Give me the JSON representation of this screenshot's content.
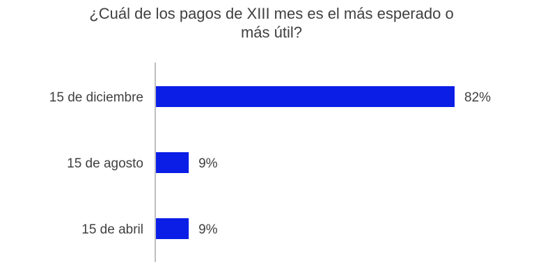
{
  "chart_data": {
    "type": "bar",
    "orientation": "horizontal",
    "title_lines": [
      "¿Cuál de los pagos de XIII mes es el más esperado o",
      "más útil?"
    ],
    "categories": [
      "15 de diciembre",
      "15 de agosto",
      "15 de abril"
    ],
    "values": [
      82,
      9,
      9
    ],
    "value_labels": [
      "82%",
      "9%",
      "9%"
    ],
    "xlim": [
      0,
      82
    ],
    "grid": false,
    "legend": "none",
    "bar_color": "#0a1ee6",
    "axis_color": "#bfbfbf",
    "text_color": "#404040"
  }
}
